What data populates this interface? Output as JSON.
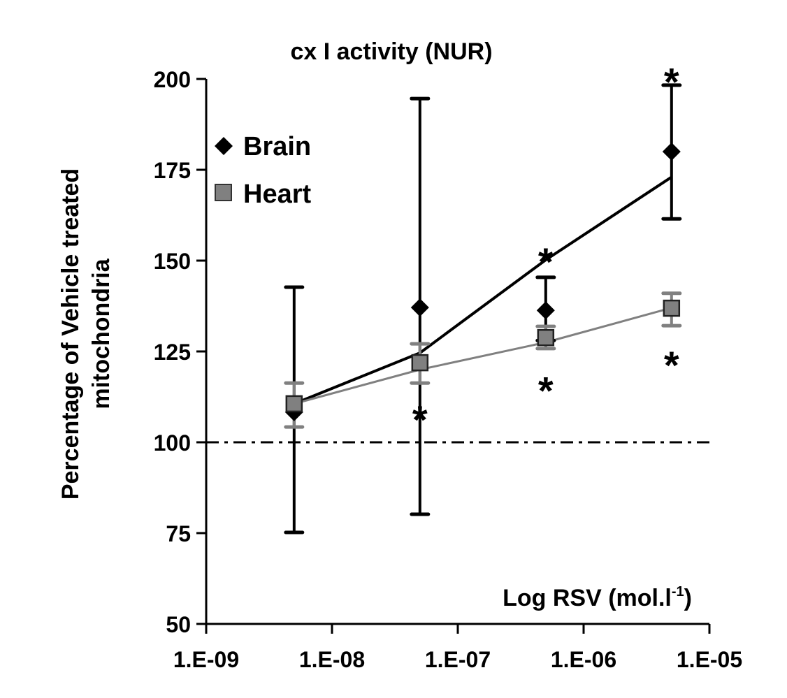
{
  "chart_data": {
    "type": "scatter",
    "title": "cx I activity (NUR)",
    "xlabel": "Log RSV (mol.l",
    "xlabel_superscript": "-1",
    "xlabel_close": ")",
    "ylabel_line1": "Percentage of Vehicle treated",
    "ylabel_line2": "mitochondria",
    "x_scale": "log",
    "xlim": [
      1e-09,
      1e-05
    ],
    "ylim": [
      50,
      200
    ],
    "x_ticks": [
      1e-09,
      1e-08,
      1e-07,
      1e-06,
      1e-05
    ],
    "x_tick_labels": [
      "1.E-09",
      "1.E-08",
      "1.E-07",
      "1.E-06",
      "1.E-05"
    ],
    "y_ticks": [
      50,
      75,
      100,
      125,
      150,
      175,
      200
    ],
    "y_tick_labels": [
      "50",
      "75",
      "100",
      "125",
      "150",
      "175",
      "200"
    ],
    "grid": false,
    "legend_position": "top-left",
    "reference_line": {
      "y": 100,
      "style": "dash-dot"
    },
    "x": [
      5e-09,
      5e-08,
      5e-07,
      5e-06
    ],
    "series": [
      {
        "name": "Brain",
        "marker": "diamond",
        "color": "#000000",
        "values": [
          108.3,
          137.1,
          136.3,
          180.0
        ],
        "err_upper": [
          142.7,
          194.6,
          145.4,
          198.3
        ],
        "err_lower": [
          75.2,
          80.2,
          128.0,
          161.5
        ],
        "trend": [
          110.6,
          124.6,
          150.2,
          173.0
        ]
      },
      {
        "name": "Heart",
        "marker": "square",
        "color": "#808080",
        "values": [
          110.6,
          121.9,
          128.8,
          136.9
        ],
        "err_upper": [
          116.3,
          127.1,
          131.9,
          141.0
        ],
        "err_lower": [
          104.2,
          116.3,
          125.8,
          132.1
        ],
        "trend": [
          110.6,
          120.0,
          127.5,
          137.0
        ]
      }
    ],
    "annotations": [
      {
        "text": "*",
        "x": 5e-06,
        "y": 200.5
      },
      {
        "text": "*",
        "x": 5e-07,
        "y": 151
      },
      {
        "text": "*",
        "x": 5e-07,
        "y": 115.5
      },
      {
        "text": "*",
        "x": 5e-06,
        "y": 122.5
      },
      {
        "text": "*",
        "x": 5e-08,
        "y": 107.5
      }
    ]
  }
}
